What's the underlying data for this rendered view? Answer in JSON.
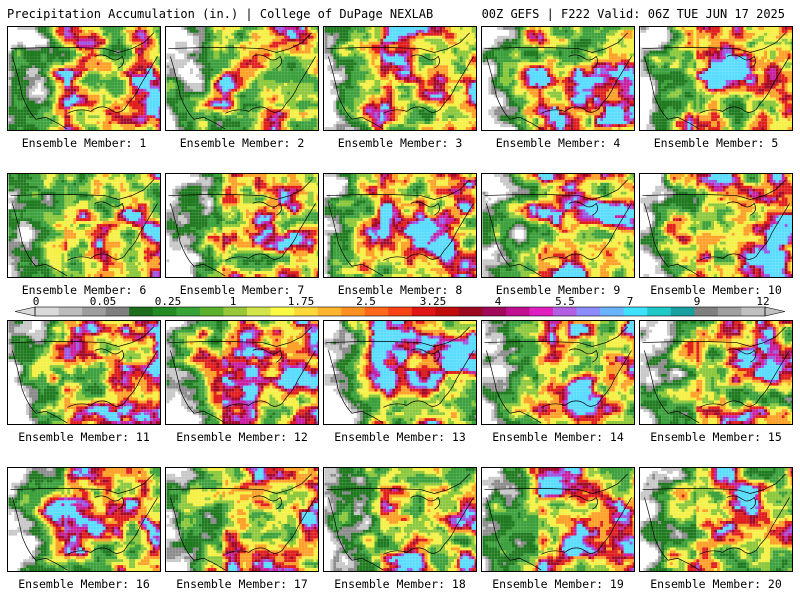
{
  "header": {
    "left_title": "Precipitation Accumulation (in.) | College of DuPage NEXLAB",
    "right_title": "00Z GEFS | F222 Valid: 06Z TUE JUN 17 2025"
  },
  "panel_label_prefix": "Ensemble Member: ",
  "members": [
    1,
    2,
    3,
    4,
    5,
    6,
    7,
    8,
    9,
    10,
    11,
    12,
    13,
    14,
    15,
    16,
    17,
    18,
    19,
    20
  ],
  "colorbar": {
    "tick_labels": [
      "0",
      "0.05",
      "0.25",
      "1",
      "1.75",
      "2.5",
      "3.25",
      "4",
      "5.5",
      "7",
      "9",
      "12"
    ],
    "colors": [
      "#dadada",
      "#bcbcbc",
      "#9e9e9e",
      "#808080",
      "#1c6e1c",
      "#228b22",
      "#36a336",
      "#5bb02c",
      "#98c83a",
      "#d2e44a",
      "#fafa46",
      "#ffd93a",
      "#ffb62e",
      "#ff9122",
      "#ff6a1a",
      "#f84414",
      "#e01616",
      "#c00c0c",
      "#9c0820",
      "#a0085a",
      "#c01090",
      "#e020c0",
      "#b060e0",
      "#8c8cff",
      "#6ab4ff",
      "#40e0ff",
      "#20c8c8",
      "#18a0a0",
      "#808080",
      "#a0a0a0",
      "#c0c0c0"
    ]
  },
  "map_colors": {
    "none": "#ffffff",
    "light_gray": "#c8c8c8",
    "gray": "#8c8c8c",
    "dark_green": "#1f7a1f",
    "green": "#3ca03c",
    "light_green": "#8cc83c",
    "yellow": "#f5f046",
    "orange": "#ffa028",
    "red": "#e01e1e",
    "dark_red": "#a00a28",
    "magenta": "#c81ea0",
    "violet": "#9a5ae6",
    "cyan": "#5adcff"
  }
}
